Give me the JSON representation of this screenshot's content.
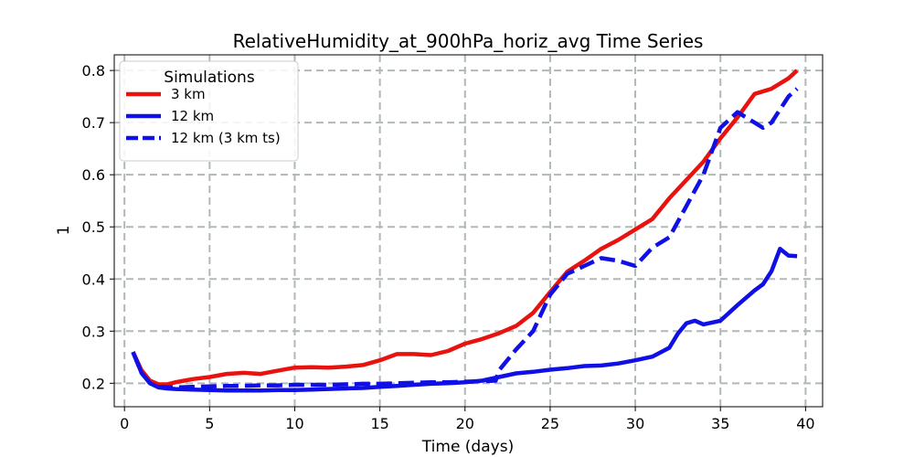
{
  "chart_data": {
    "type": "line",
    "title": "RelativeHumidity_at_900hPa_horiz_avg Time Series",
    "xlabel": "Time (days)",
    "ylabel": "1",
    "xlim": [
      -0.6,
      41.0
    ],
    "ylim": [
      0.155,
      0.83
    ],
    "xticks": [
      0,
      5,
      10,
      15,
      20,
      25,
      30,
      35,
      40
    ],
    "yticks": [
      0.2,
      0.3,
      0.4,
      0.5,
      0.6,
      0.7,
      0.8
    ],
    "grid": true,
    "legend": {
      "title": "Simulations",
      "position": "top-left"
    },
    "series": [
      {
        "name": "3 km",
        "color": "#e8130f",
        "style": "solid",
        "x": [
          0.5,
          1.0,
          1.5,
          2.0,
          2.5,
          3.0,
          3.5,
          4.0,
          5.0,
          6.0,
          7.0,
          8.0,
          9.0,
          10.0,
          11.0,
          12.0,
          13.0,
          14.0,
          15.0,
          16.0,
          17.0,
          18.0,
          19.0,
          20.0,
          21.0,
          22.0,
          23.0,
          24.0,
          25.0,
          26.0,
          27.0,
          28.0,
          29.0,
          30.0,
          31.0,
          32.0,
          33.0,
          34.0,
          35.0,
          36.0,
          37.0,
          38.0,
          39.0,
          39.5
        ],
        "values": [
          0.26,
          0.225,
          0.205,
          0.198,
          0.198,
          0.202,
          0.205,
          0.208,
          0.212,
          0.218,
          0.22,
          0.218,
          0.224,
          0.23,
          0.231,
          0.23,
          0.232,
          0.235,
          0.244,
          0.256,
          0.256,
          0.254,
          0.262,
          0.276,
          0.285,
          0.296,
          0.31,
          0.335,
          0.375,
          0.414,
          0.435,
          0.458,
          0.475,
          0.495,
          0.515,
          0.555,
          0.59,
          0.625,
          0.67,
          0.71,
          0.755,
          0.765,
          0.785,
          0.8
        ]
      },
      {
        "name": "12 km",
        "color": "#0f0fe6",
        "style": "solid",
        "x": [
          0.5,
          1.0,
          1.5,
          2.0,
          2.5,
          3.0,
          4.0,
          5.0,
          6.0,
          7.0,
          8.0,
          9.0,
          10.0,
          11.0,
          12.0,
          13.0,
          14.0,
          15.0,
          16.0,
          17.0,
          18.0,
          19.0,
          20.0,
          21.0,
          22.0,
          23.0,
          24.0,
          25.0,
          26.0,
          27.0,
          28.0,
          29.0,
          30.0,
          31.0,
          32.0,
          32.5,
          33.0,
          33.5,
          34.0,
          35.0,
          36.0,
          37.0,
          37.5,
          38.0,
          38.5,
          39.0,
          39.5
        ],
        "values": [
          0.26,
          0.22,
          0.2,
          0.192,
          0.19,
          0.189,
          0.188,
          0.187,
          0.186,
          0.186,
          0.186,
          0.187,
          0.187,
          0.188,
          0.189,
          0.19,
          0.191,
          0.193,
          0.195,
          0.197,
          0.199,
          0.2,
          0.202,
          0.205,
          0.212,
          0.219,
          0.222,
          0.226,
          0.229,
          0.233,
          0.234,
          0.238,
          0.244,
          0.251,
          0.268,
          0.295,
          0.315,
          0.32,
          0.313,
          0.32,
          0.35,
          0.378,
          0.39,
          0.415,
          0.458,
          0.445,
          0.444
        ]
      },
      {
        "name": "12 km (3 km ts)",
        "color": "#0f0fe6",
        "style": "dashed",
        "x": [
          0.5,
          1.0,
          1.5,
          2.0,
          3.0,
          4.0,
          5.0,
          6.0,
          7.0,
          8.0,
          9.0,
          10.0,
          11.0,
          12.0,
          13.0,
          14.0,
          15.0,
          16.0,
          17.0,
          18.0,
          19.0,
          20.0,
          21.0,
          21.8,
          22.0,
          23.0,
          24.0,
          25.0,
          26.0,
          27.0,
          28.0,
          29.0,
          30.0,
          31.0,
          32.0,
          33.0,
          34.0,
          35.0,
          36.0,
          37.0,
          37.5,
          38.0,
          39.0,
          39.5
        ],
        "values": [
          0.26,
          0.22,
          0.2,
          0.193,
          0.192,
          0.193,
          0.194,
          0.195,
          0.195,
          0.196,
          0.196,
          0.197,
          0.197,
          0.197,
          0.198,
          0.199,
          0.199,
          0.2,
          0.201,
          0.202,
          0.202,
          0.203,
          0.204,
          0.205,
          0.225,
          0.265,
          0.3,
          0.37,
          0.41,
          0.425,
          0.44,
          0.435,
          0.425,
          0.46,
          0.48,
          0.54,
          0.6,
          0.69,
          0.72,
          0.7,
          0.69,
          0.7,
          0.75,
          0.765
        ]
      }
    ]
  }
}
